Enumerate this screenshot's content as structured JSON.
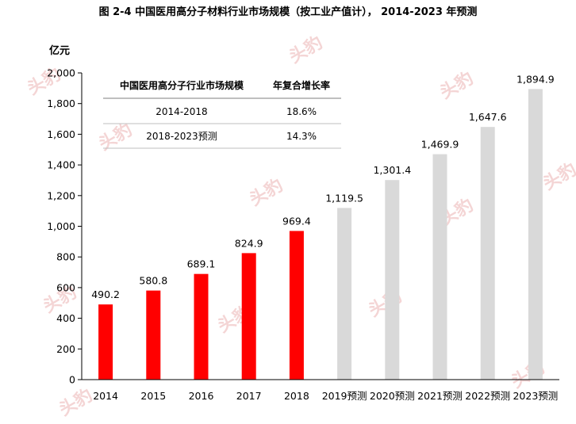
{
  "chart_data": {
    "type": "bar",
    "title": "图 2-4 中国医用高分子材料行业市场规模（按工业产值计）， 2014-2023 年预测",
    "unit": "亿元",
    "categories": [
      "2014",
      "2015",
      "2016",
      "2017",
      "2018",
      "2019预测",
      "2020预测",
      "2021预测",
      "2022预测",
      "2023预测"
    ],
    "values": [
      490.2,
      580.8,
      689.1,
      824.9,
      969.4,
      1119.5,
      1301.4,
      1469.9,
      1647.6,
      1894.9
    ],
    "value_labels": [
      "490.2",
      "580.8",
      "689.1",
      "824.9",
      "969.4",
      "1,119.5",
      "1,301.4",
      "1,469.9",
      "1,647.6",
      "1,894.9"
    ],
    "ylim": [
      0,
      2000
    ],
    "yticks": [
      0,
      200,
      400,
      600,
      800,
      1000,
      1200,
      1400,
      1600,
      1800,
      2000
    ],
    "ytick_labels": [
      "0",
      "200",
      "400",
      "600",
      "800",
      "1,000",
      "1,200",
      "1,400",
      "1,600",
      "1,800",
      "2,000"
    ],
    "grid": false,
    "colors": {
      "actual": "#ff0000",
      "forecast": "#d9d9d9"
    },
    "forecast_from_index": 5,
    "cagr_table": {
      "headers": [
        "中国医用高分子行业市场规模",
        "年复合增长率"
      ],
      "rows": [
        [
          "2014-2018",
          "18.6%"
        ],
        [
          "2018-2023预测",
          "14.3%"
        ]
      ]
    }
  },
  "watermark": {
    "text": "头豹"
  }
}
